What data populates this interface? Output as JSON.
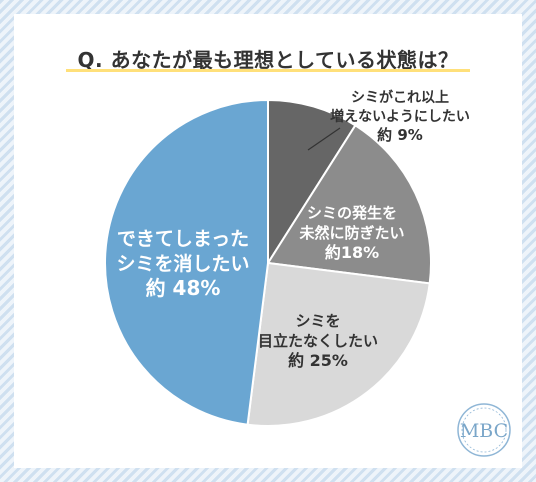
{
  "header": {
    "title": "Q. あなたが最も理想としている状態は？"
  },
  "logo": {
    "text": "MBC"
  },
  "colors": {
    "background_stripe": "#cfe0f0",
    "title_underline": "#ffe07a"
  },
  "chart_data": {
    "type": "pie",
    "title": "Q. あなたが最も理想としている状態は？",
    "start_angle": "12 o'clock",
    "direction": "clockwise",
    "slices": [
      {
        "label_lines": [
          "シミがこれ以上",
          "増えないようにしたい"
        ],
        "value_text": "約 9%",
        "value": 9,
        "color": "#666666",
        "label_color": "#333333",
        "label_position": "outside-top-right"
      },
      {
        "label_lines": [
          "シミの発生を",
          "未然に防ぎたい"
        ],
        "value_text": "約18%",
        "value": 18,
        "color": "#8c8c8c",
        "label_color": "#ffffff",
        "label_position": "inside"
      },
      {
        "label_lines": [
          "シミを",
          "目立たなくしたい"
        ],
        "value_text": "約 25%",
        "value": 25,
        "color": "#d9d9d9",
        "label_color": "#333333",
        "label_position": "inside"
      },
      {
        "label_lines": [
          "できてしまった",
          "シミを消したい"
        ],
        "value_text": "約 48%",
        "value": 48,
        "color": "#6aa6d2",
        "label_color": "#ffffff",
        "label_position": "inside"
      }
    ]
  }
}
